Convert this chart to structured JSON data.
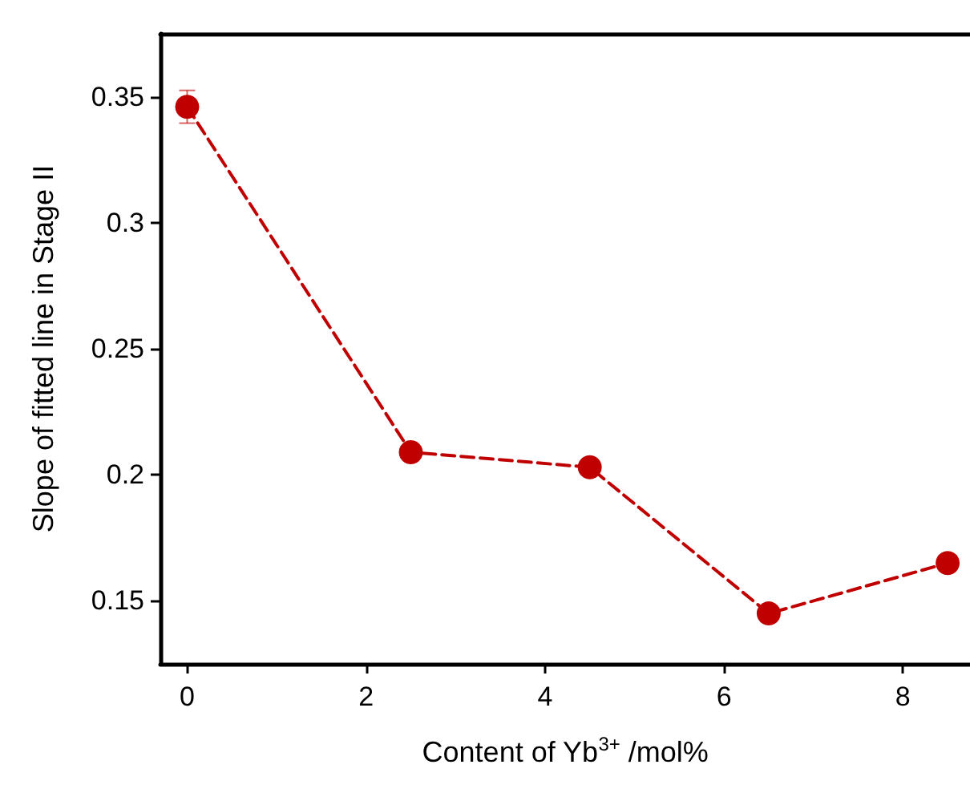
{
  "chart_data": {
    "type": "line",
    "xlabel": "Content of Yb$^{3+}$ /mol%",
    "ylabel": "Slope of fitted line in Stage II",
    "x": [
      0,
      2.5,
      4.5,
      6.5,
      8.5
    ],
    "series": [
      {
        "color": "#c00000",
        "values": [
          0.346,
          0.209,
          0.203,
          0.145,
          0.165
        ],
        "errors": [
          0.0065,
          null,
          null,
          null,
          null
        ]
      }
    ],
    "xlim": [
      -0.3,
      8.75
    ],
    "xticks": [
      0,
      2,
      4,
      6,
      8
    ],
    "ylim": [
      0.125,
      0.375
    ],
    "yticks": [
      0.15,
      0.2,
      0.25,
      0.3,
      0.35
    ],
    "grid": false,
    "marker": "circle",
    "line_style": "dashed"
  }
}
